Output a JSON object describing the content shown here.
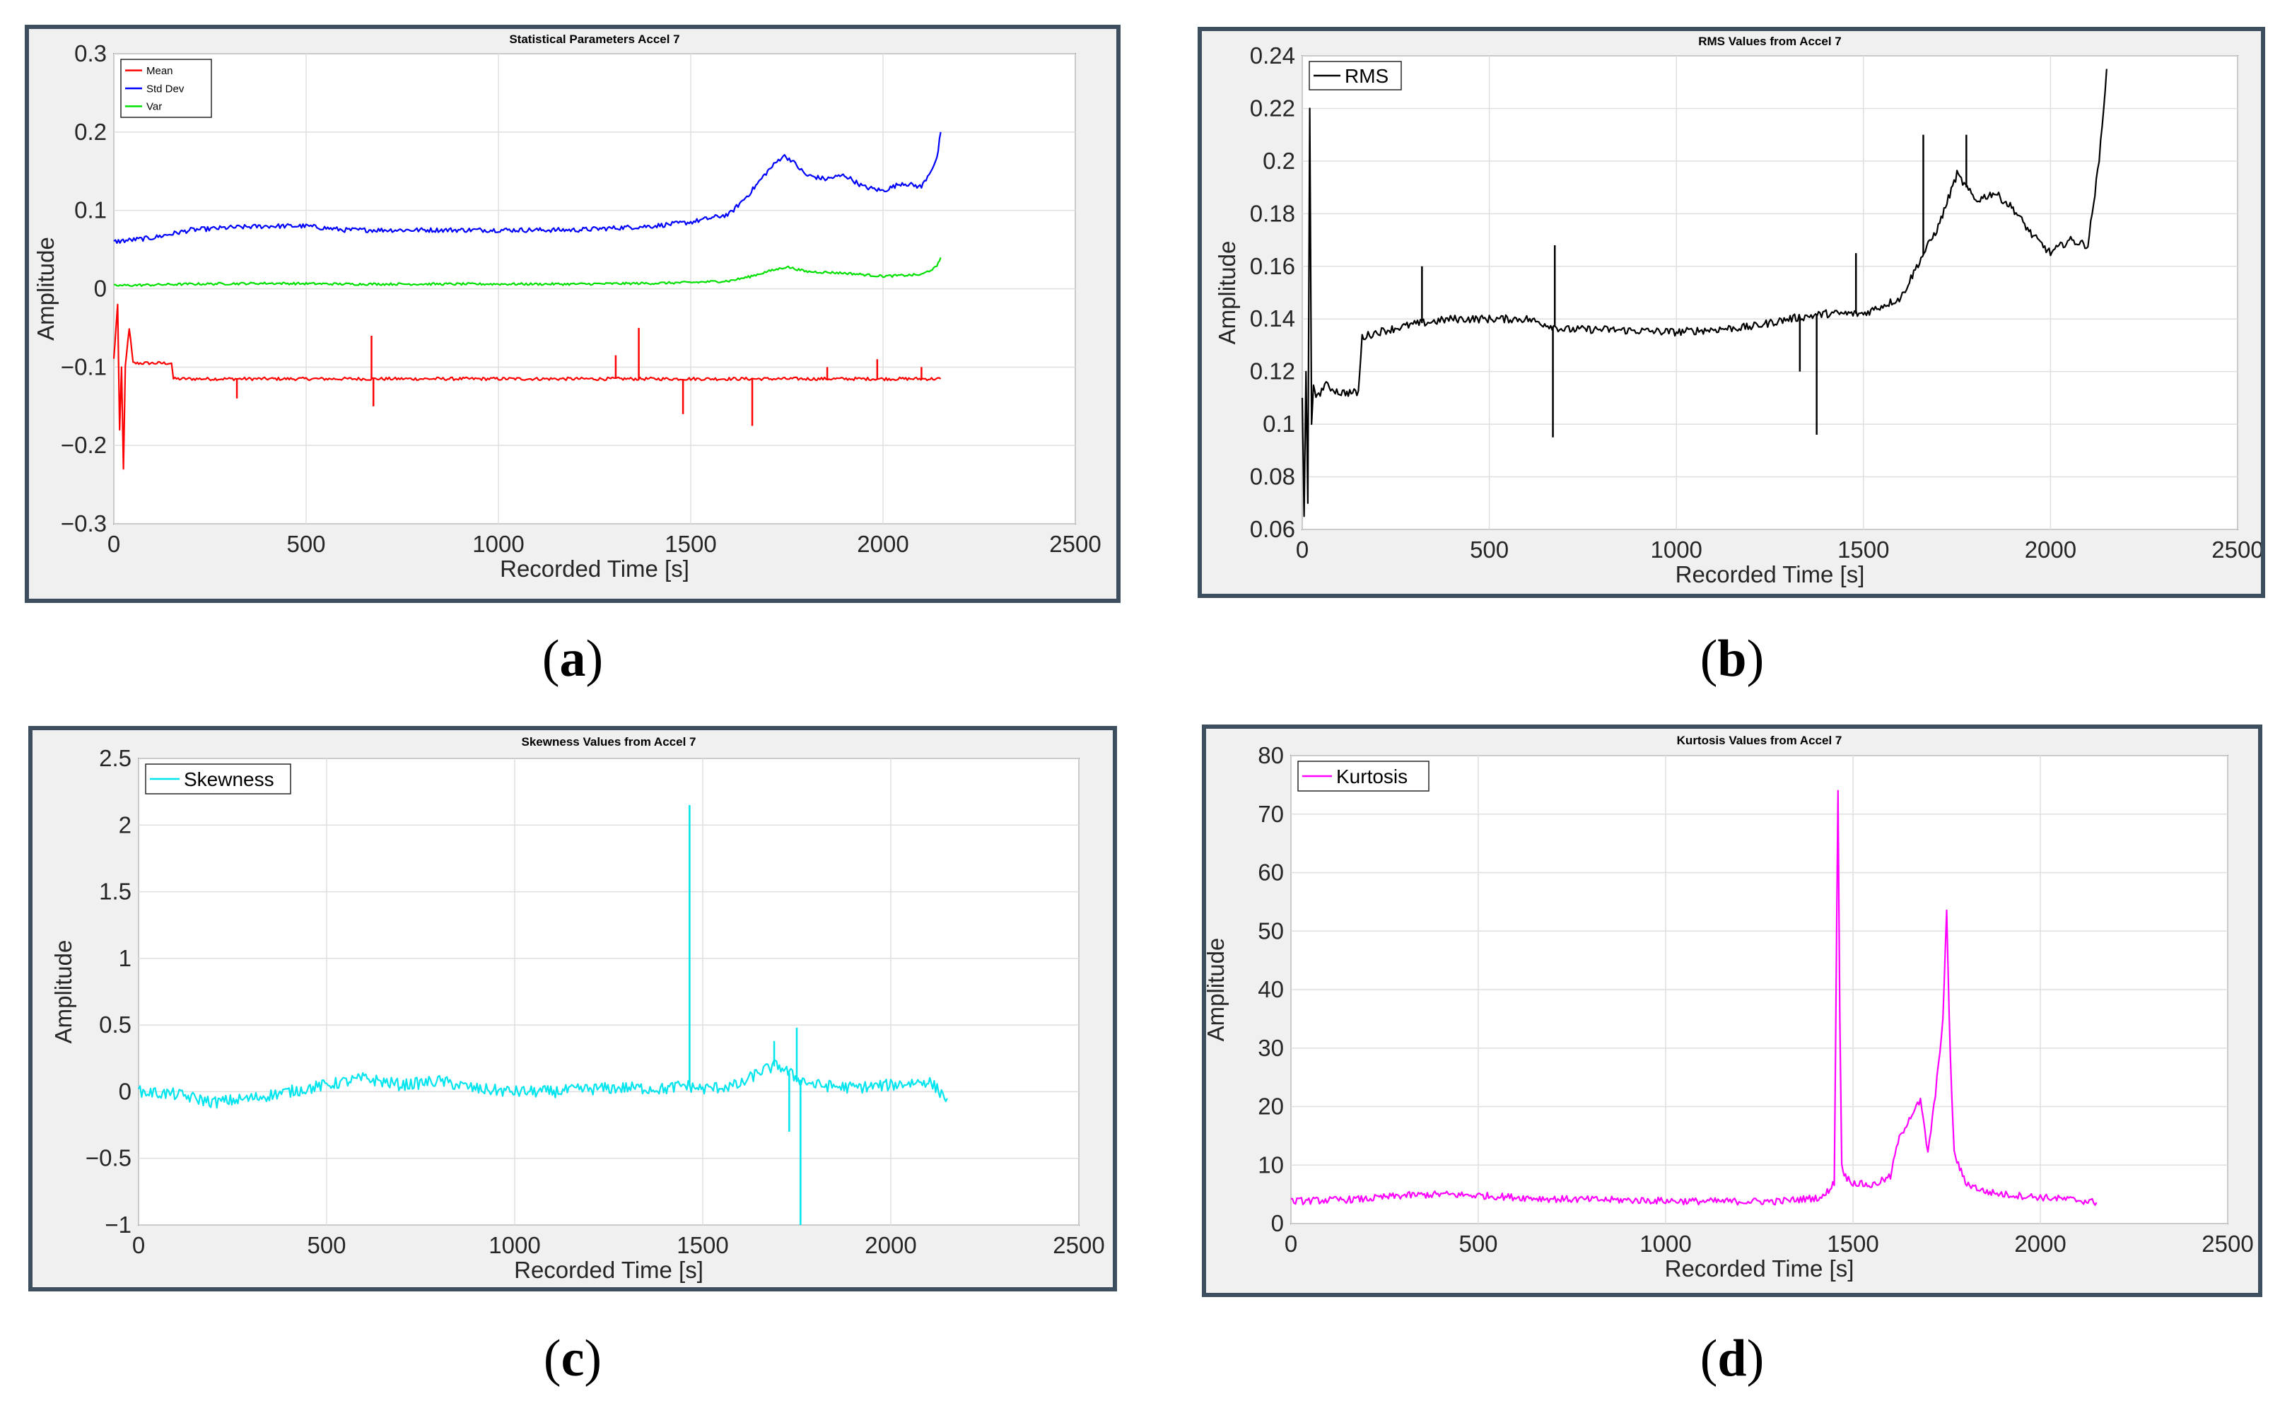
{
  "figure": {
    "captions": [
      "a",
      "b",
      "c",
      "d"
    ]
  },
  "chart_data": [
    {
      "id": "a",
      "type": "line",
      "title": "Statistical Parameters Accel 7",
      "xlabel": "Recorded Time [s]",
      "ylabel": "Amplitude",
      "xlim": [
        0,
        2500
      ],
      "ylim": [
        -0.3,
        0.3
      ],
      "xticks": [
        0,
        500,
        1000,
        1500,
        2000,
        2500
      ],
      "yticks": [
        -0.3,
        -0.2,
        -0.1,
        0,
        0.1,
        0.2,
        0.3
      ],
      "ytick_labels": [
        "−0.3",
        "−0.2",
        "−0.1",
        "0",
        "0.1",
        "0.2",
        "0.3"
      ],
      "grid": true,
      "legend_position": "top-left",
      "series": [
        {
          "name": "Mean",
          "color": "#ff0000",
          "x": [
            0,
            10,
            15,
            20,
            25,
            30,
            40,
            50,
            80,
            100,
            150,
            155,
            300,
            600,
            900,
            1200,
            1500,
            1800,
            2000,
            2150
          ],
          "y": [
            -0.09,
            -0.02,
            -0.18,
            -0.1,
            -0.23,
            -0.1,
            -0.05,
            -0.095,
            -0.095,
            -0.095,
            -0.095,
            -0.115,
            -0.115,
            -0.115,
            -0.115,
            -0.115,
            -0.115,
            -0.115,
            -0.115,
            -0.115
          ],
          "spikes": [
            [
              320,
              -0.14
            ],
            [
              670,
              -0.06
            ],
            [
              675,
              -0.15
            ],
            [
              1305,
              -0.085
            ],
            [
              1365,
              -0.05
            ],
            [
              1480,
              -0.16
            ],
            [
              1660,
              -0.175
            ],
            [
              1855,
              -0.1
            ],
            [
              1985,
              -0.09
            ],
            [
              2100,
              -0.1
            ]
          ]
        },
        {
          "name": "Std Dev",
          "color": "#0000ff",
          "x": [
            0,
            100,
            150,
            200,
            300,
            400,
            500,
            600,
            800,
            1000,
            1200,
            1400,
            1500,
            1600,
            1650,
            1700,
            1740,
            1760,
            1800,
            1850,
            1900,
            1950,
            2000,
            2050,
            2100,
            2140,
            2150
          ],
          "y": [
            0.06,
            0.065,
            0.07,
            0.075,
            0.078,
            0.08,
            0.08,
            0.075,
            0.075,
            0.075,
            0.075,
            0.08,
            0.085,
            0.095,
            0.12,
            0.15,
            0.17,
            0.165,
            0.145,
            0.14,
            0.145,
            0.13,
            0.125,
            0.135,
            0.13,
            0.165,
            0.2
          ]
        },
        {
          "name": "Var",
          "color": "#00e000",
          "x": [
            0,
            200,
            400,
            600,
            800,
            1000,
            1200,
            1400,
            1500,
            1600,
            1650,
            1700,
            1750,
            1800,
            1900,
            2000,
            2100,
            2140,
            2150
          ],
          "y": [
            0.004,
            0.006,
            0.007,
            0.006,
            0.006,
            0.006,
            0.006,
            0.007,
            0.008,
            0.01,
            0.015,
            0.022,
            0.028,
            0.022,
            0.02,
            0.016,
            0.018,
            0.028,
            0.04
          ]
        }
      ]
    },
    {
      "id": "b",
      "type": "line",
      "title": "RMS Values from Accel 7",
      "xlabel": "Recorded Time [s]",
      "ylabel": "Amplitude",
      "xlim": [
        0,
        2500
      ],
      "ylim": [
        0.06,
        0.24
      ],
      "xticks": [
        0,
        500,
        1000,
        1500,
        2000,
        2500
      ],
      "yticks": [
        0.06,
        0.08,
        0.1,
        0.12,
        0.14,
        0.16,
        0.18,
        0.2,
        0.22,
        0.24
      ],
      "ytick_labels": [
        "0.06",
        "0.08",
        "0.1",
        "0.12",
        "0.14",
        "0.16",
        "0.18",
        "0.2",
        "0.22",
        "0.24"
      ],
      "grid": true,
      "legend_position": "top-left",
      "series": [
        {
          "name": "RMS",
          "color": "#000000",
          "x": [
            0,
            5,
            10,
            15,
            20,
            25,
            30,
            40,
            60,
            100,
            150,
            160,
            200,
            300,
            400,
            500,
            600,
            700,
            800,
            1000,
            1200,
            1300,
            1400,
            1500,
            1600,
            1650,
            1700,
            1750,
            1800,
            1850,
            1900,
            1950,
            2000,
            2050,
            2100,
            2130,
            2150
          ],
          "y": [
            0.11,
            0.065,
            0.12,
            0.07,
            0.22,
            0.1,
            0.115,
            0.11,
            0.115,
            0.112,
            0.112,
            0.133,
            0.135,
            0.138,
            0.14,
            0.14,
            0.14,
            0.136,
            0.136,
            0.135,
            0.137,
            0.14,
            0.142,
            0.142,
            0.148,
            0.162,
            0.175,
            0.195,
            0.185,
            0.188,
            0.182,
            0.172,
            0.165,
            0.17,
            0.168,
            0.2,
            0.235
          ],
          "spikes": [
            [
              320,
              0.16
            ],
            [
              670,
              0.095
            ],
            [
              675,
              0.168
            ],
            [
              1330,
              0.12
            ],
            [
              1375,
              0.096
            ],
            [
              1480,
              0.165
            ],
            [
              1660,
              0.21
            ],
            [
              1775,
              0.21
            ]
          ]
        }
      ]
    },
    {
      "id": "c",
      "type": "line",
      "title": "Skewness Values from Accel 7",
      "xlabel": "Recorded Time [s]",
      "ylabel": "Amplitude",
      "xlim": [
        0,
        2500
      ],
      "ylim": [
        -1,
        2.5
      ],
      "xticks": [
        0,
        500,
        1000,
        1500,
        2000,
        2500
      ],
      "yticks": [
        -1,
        -0.5,
        0,
        0.5,
        1,
        1.5,
        2,
        2.5
      ],
      "ytick_labels": [
        "−1",
        "−0.5",
        "0",
        "0.5",
        "1",
        "1.5",
        "2",
        "2.5"
      ],
      "grid": true,
      "legend_position": "top-left",
      "series": [
        {
          "name": "Skewness",
          "color": "#00e5ee",
          "x": [
            0,
            100,
            200,
            300,
            400,
            500,
            600,
            700,
            800,
            900,
            1000,
            1100,
            1200,
            1300,
            1400,
            1450,
            1500,
            1600,
            1650,
            1700,
            1750,
            1800,
            1900,
            2000,
            2100,
            2150
          ],
          "y": [
            0,
            -0.02,
            -0.08,
            -0.05,
            0,
            0.05,
            0.1,
            0.05,
            0.08,
            0.02,
            0,
            0,
            0.02,
            0.03,
            0.02,
            0.05,
            0.02,
            0.05,
            0.15,
            0.2,
            0.1,
            0.05,
            0.03,
            0.05,
            0.08,
            -0.05
          ],
          "spikes": [
            [
              1465,
              2.15
            ],
            [
              1760,
              -1.0
            ],
            [
              1690,
              0.38
            ],
            [
              1750,
              0.48
            ],
            [
              1730,
              -0.3
            ]
          ]
        }
      ]
    },
    {
      "id": "d",
      "type": "line",
      "title": "Kurtosis Values from Accel 7",
      "xlabel": "Recorded Time [s]",
      "ylabel": "Amplitude",
      "xlim": [
        0,
        2500
      ],
      "ylim": [
        0,
        80
      ],
      "xticks": [
        0,
        500,
        1000,
        1500,
        2000,
        2500
      ],
      "yticks": [
        0,
        10,
        20,
        30,
        40,
        50,
        60,
        70,
        80
      ],
      "ytick_labels": [
        "0",
        "10",
        "20",
        "30",
        "40",
        "50",
        "60",
        "70",
        "80"
      ],
      "grid": true,
      "legend_position": "top-left",
      "series": [
        {
          "name": "Kurtosis",
          "color": "#ff00ff",
          "x": [
            0,
            200,
            300,
            400,
            500,
            700,
            900,
            1100,
            1300,
            1420,
            1450,
            1460,
            1465,
            1470,
            1480,
            1500,
            1550,
            1600,
            1620,
            1650,
            1680,
            1700,
            1720,
            1740,
            1750,
            1760,
            1770,
            1800,
            1850,
            1900,
            2000,
            2100,
            2150
          ],
          "y": [
            3.8,
            4.2,
            4.8,
            5,
            4.8,
            4.2,
            4,
            3.8,
            3.8,
            4.5,
            7,
            74,
            35,
            10,
            8,
            7,
            6.5,
            8,
            14,
            18,
            21,
            12,
            22,
            35,
            53,
            28,
            12,
            7,
            5.5,
            5,
            4.5,
            4,
            3.6
          ]
        }
      ]
    }
  ]
}
